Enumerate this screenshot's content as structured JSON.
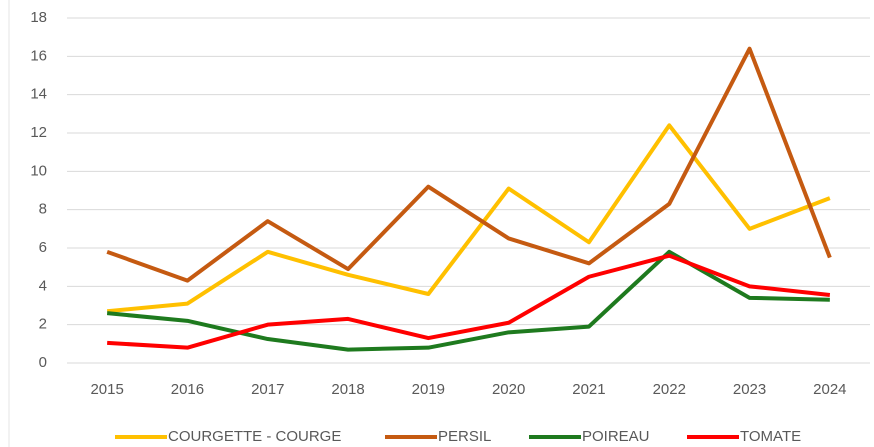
{
  "chart_data": {
    "type": "line",
    "categories": [
      "2015",
      "2016",
      "2017",
      "2018",
      "2019",
      "2020",
      "2021",
      "2022",
      "2023",
      "2024"
    ],
    "series": [
      {
        "name": "COURGETTE - COURGE",
        "color": "#ffc000",
        "values": [
          2.7,
          3.1,
          5.8,
          4.6,
          3.6,
          9.1,
          6.3,
          12.4,
          7.0,
          8.6
        ]
      },
      {
        "name": "PERSIL",
        "color": "#c55a11",
        "values": [
          5.8,
          4.3,
          7.4,
          4.9,
          9.2,
          6.5,
          5.2,
          8.3,
          16.4,
          5.5
        ]
      },
      {
        "name": "POIREAU",
        "color": "#1e7a1e",
        "values": [
          2.6,
          2.2,
          1.25,
          0.7,
          0.8,
          1.6,
          1.9,
          5.8,
          3.4,
          3.3
        ]
      },
      {
        "name": "TOMATE",
        "color": "#ff0000",
        "values": [
          1.05,
          0.8,
          2.0,
          2.3,
          1.3,
          2.1,
          4.5,
          5.6,
          4.0,
          3.55
        ]
      }
    ],
    "ylim": [
      0,
      18
    ],
    "yticks": [
      0,
      2,
      4,
      6,
      8,
      10,
      12,
      14,
      16,
      18
    ],
    "grid": true,
    "legend": "bottom"
  }
}
